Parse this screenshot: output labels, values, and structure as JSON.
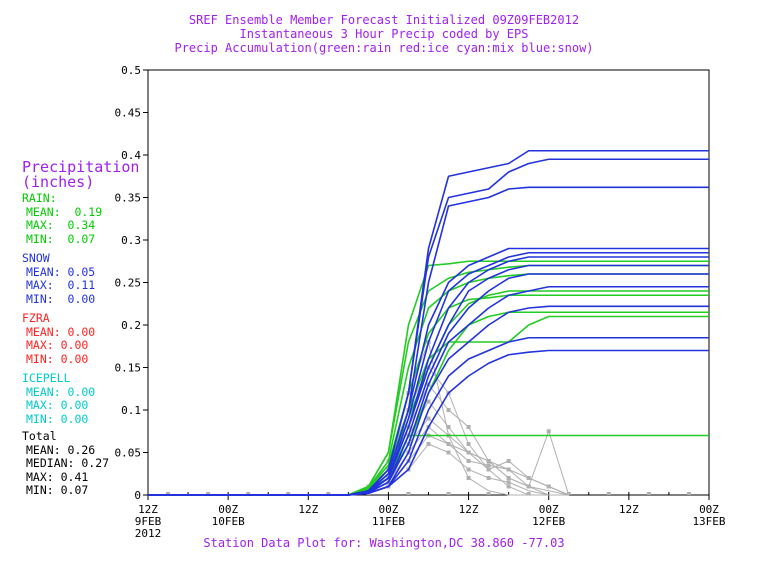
{
  "titles": [
    "SREF Ensemble Member Forecast Initialized 09Z09FEB2012",
    "Instantaneous 3 Hour Precip coded by EPS",
    "Precip Accumulation(green:rain red:ice cyan:mix blue:snow)"
  ],
  "footer": "Station Data Plot for: Washington,DC 38.860 -77.03",
  "legend": {
    "heading": [
      "Precipitation",
      "(inches)"
    ],
    "groups": [
      {
        "name": "RAIN:",
        "color": "#00cc00",
        "rows": [
          "MEAN:  0.19",
          "MAX:  0.34",
          "MIN:  0.07"
        ]
      },
      {
        "name": "SNOW",
        "color": "#2233dd",
        "rows": [
          "MEAN: 0.05",
          "MAX:  0.11",
          "MIN:  0.00"
        ]
      },
      {
        "name": "FZRA",
        "color": "#ff2222",
        "rows": [
          "MEAN: 0.00",
          "MAX: 0.00",
          "MIN: 0.00"
        ]
      },
      {
        "name": "ICEPELL",
        "color": "#00cccc",
        "rows": [
          "MEAN: 0.00",
          "MAX: 0.00",
          "MIN: 0.00"
        ]
      },
      {
        "name": "Total",
        "color": "#000000",
        "rows": [
          "MEAN: 0.26",
          "MEDIAN: 0.27",
          "MAX: 0.41",
          "MIN: 0.07"
        ]
      }
    ]
  },
  "chart_data": {
    "type": "line",
    "xlabel": "",
    "ylabel": "",
    "ylim": [
      0,
      0.5
    ],
    "xlim": [
      12,
      96
    ],
    "yticks": [
      0,
      0.05,
      0.1,
      0.15,
      0.2,
      0.25,
      0.3,
      0.35,
      0.4,
      0.45,
      0.5
    ],
    "yticklabels": [
      "0",
      "0.05",
      "0.1",
      "0.15",
      "0.2",
      "0.25",
      "0.3",
      "0.35",
      "0.4",
      "0.45",
      "0.5"
    ],
    "xticks": [
      {
        "x": 12,
        "lines": [
          "12Z",
          "9FEB",
          "2012"
        ]
      },
      {
        "x": 24,
        "lines": [
          "00Z",
          "10FEB"
        ]
      },
      {
        "x": 36,
        "lines": [
          "12Z"
        ]
      },
      {
        "x": 48,
        "lines": [
          "00Z",
          "11FEB"
        ]
      },
      {
        "x": 60,
        "lines": [
          "12Z"
        ]
      },
      {
        "x": 72,
        "lines": [
          "00Z",
          "12FEB"
        ]
      },
      {
        "x": 84,
        "lines": [
          "12Z"
        ]
      },
      {
        "x": 96,
        "lines": [
          "00Z",
          "13FEB"
        ]
      }
    ],
    "colors": {
      "snow": "#2233dd",
      "rain": "#22cc22",
      "instant": "#b0b0b0"
    },
    "accum_x": [
      12,
      42,
      45,
      48,
      51,
      54,
      57,
      60,
      63,
      66,
      69,
      72,
      75,
      96
    ],
    "snow_series": [
      {
        "values": [
          0,
          0,
          0.005,
          0.03,
          0.12,
          0.29,
          0.375,
          0.38,
          0.385,
          0.39,
          0.405,
          0.405,
          0.405,
          0.405
        ]
      },
      {
        "values": [
          0,
          0,
          0.005,
          0.03,
          0.12,
          0.28,
          0.35,
          0.355,
          0.36,
          0.38,
          0.39,
          0.395,
          0.395,
          0.395
        ]
      },
      {
        "values": [
          0,
          0,
          0.004,
          0.025,
          0.1,
          0.25,
          0.34,
          0.345,
          0.35,
          0.36,
          0.362,
          0.362,
          0.362,
          0.362
        ]
      },
      {
        "values": [
          0,
          0,
          0.004,
          0.025,
          0.1,
          0.2,
          0.25,
          0.27,
          0.28,
          0.29,
          0.29,
          0.29,
          0.29,
          0.29
        ]
      },
      {
        "values": [
          0,
          0,
          0.004,
          0.02,
          0.09,
          0.18,
          0.24,
          0.26,
          0.27,
          0.28,
          0.285,
          0.285,
          0.285,
          0.285
        ]
      },
      {
        "values": [
          0,
          0,
          0.003,
          0.02,
          0.08,
          0.16,
          0.22,
          0.25,
          0.265,
          0.275,
          0.28,
          0.28,
          0.28,
          0.28
        ]
      },
      {
        "values": [
          0,
          0,
          0.003,
          0.02,
          0.08,
          0.15,
          0.2,
          0.24,
          0.255,
          0.265,
          0.27,
          0.27,
          0.27,
          0.27
        ]
      },
      {
        "values": [
          0,
          0,
          0.003,
          0.015,
          0.07,
          0.14,
          0.19,
          0.22,
          0.24,
          0.255,
          0.26,
          0.26,
          0.26,
          0.26
        ]
      },
      {
        "values": [
          0,
          0,
          0.003,
          0.015,
          0.06,
          0.13,
          0.18,
          0.2,
          0.22,
          0.235,
          0.24,
          0.245,
          0.245,
          0.245
        ]
      },
      {
        "values": [
          0,
          0,
          0.002,
          0.01,
          0.05,
          0.12,
          0.16,
          0.18,
          0.2,
          0.215,
          0.22,
          0.222,
          0.222,
          0.222
        ]
      },
      {
        "values": [
          0,
          0,
          0.002,
          0.01,
          0.04,
          0.1,
          0.14,
          0.16,
          0.17,
          0.18,
          0.185,
          0.185,
          0.185,
          0.185
        ]
      },
      {
        "values": [
          0,
          0,
          0.002,
          0.01,
          0.03,
          0.08,
          0.12,
          0.14,
          0.155,
          0.165,
          0.168,
          0.17,
          0.17,
          0.17
        ]
      }
    ],
    "rain_series": [
      {
        "values": [
          0,
          0,
          0.01,
          0.05,
          0.2,
          0.27,
          0.272,
          0.275,
          0.275,
          0.275,
          0.275,
          0.275,
          0.275,
          0.275
        ]
      },
      {
        "values": [
          0,
          0,
          0.01,
          0.05,
          0.18,
          0.24,
          0.255,
          0.262,
          0.265,
          0.268,
          0.27,
          0.27,
          0.27,
          0.27
        ]
      },
      {
        "values": [
          0,
          0,
          0.008,
          0.04,
          0.15,
          0.22,
          0.24,
          0.25,
          0.255,
          0.258,
          0.26,
          0.26,
          0.26,
          0.26
        ]
      },
      {
        "values": [
          0,
          0,
          0.008,
          0.035,
          0.12,
          0.19,
          0.22,
          0.23,
          0.232,
          0.235,
          0.235,
          0.235,
          0.235,
          0.235
        ]
      },
      {
        "values": [
          0,
          0,
          0.006,
          0.03,
          0.1,
          0.16,
          0.18,
          0.18,
          0.18,
          0.18,
          0.2,
          0.21,
          0.21,
          0.21
        ]
      },
      {
        "values": [
          0,
          0,
          0.006,
          0.03,
          0.09,
          0.15,
          0.2,
          0.225,
          0.235,
          0.24,
          0.24,
          0.24,
          0.24,
          0.24
        ]
      },
      {
        "values": [
          0,
          0,
          0.005,
          0.02,
          0.07,
          0.07,
          0.07,
          0.07,
          0.07,
          0.07,
          0.07,
          0.07,
          0.07,
          0.07
        ]
      },
      {
        "values": [
          0,
          0,
          0.005,
          0.02,
          0.06,
          0.12,
          0.17,
          0.2,
          0.21,
          0.215,
          0.215,
          0.215,
          0.215,
          0.215
        ]
      }
    ],
    "instant_x": [
      42,
      45,
      48,
      51,
      54,
      57,
      60,
      63,
      66,
      69,
      72,
      75
    ],
    "instant_series": [
      {
        "values": [
          0,
          0.01,
          0.03,
          0.12,
          0.18,
          0.07,
          0.02,
          0.005,
          0,
          0,
          0,
          0
        ]
      },
      {
        "values": [
          0,
          0.01,
          0.04,
          0.1,
          0.15,
          0.12,
          0.06,
          0.03,
          0.01,
          0,
          0,
          0
        ]
      },
      {
        "values": [
          0,
          0.005,
          0.03,
          0.08,
          0.13,
          0.1,
          0.08,
          0.04,
          0.02,
          0.01,
          0,
          0
        ]
      },
      {
        "values": [
          0,
          0.005,
          0.02,
          0.07,
          0.11,
          0.08,
          0.05,
          0.03,
          0.04,
          0.02,
          0.01,
          0
        ]
      },
      {
        "values": [
          0,
          0.005,
          0.02,
          0.06,
          0.09,
          0.07,
          0.05,
          0.04,
          0.03,
          0.02,
          0.01,
          0
        ]
      },
      {
        "values": [
          0,
          0.003,
          0.015,
          0.05,
          0.08,
          0.06,
          0.04,
          0.035,
          0.03,
          0.01,
          0.075,
          0
        ]
      },
      {
        "values": [
          0,
          0.003,
          0.01,
          0.04,
          0.07,
          0.06,
          0.05,
          0.04,
          0.02,
          0.01,
          0.005,
          0
        ]
      },
      {
        "values": [
          0,
          0.002,
          0.01,
          0.03,
          0.06,
          0.05,
          0.03,
          0.02,
          0.015,
          0.005,
          0,
          0
        ]
      }
    ]
  }
}
